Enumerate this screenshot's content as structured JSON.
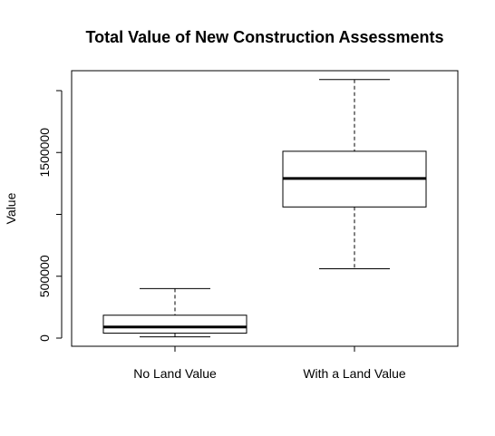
{
  "chart_data": {
    "type": "box",
    "title": "Total Value of New Construction Assessments",
    "xlabel": "",
    "ylabel": "Value",
    "ylim": [
      0,
      2000000
    ],
    "y_ticks": [
      0,
      500000,
      1000000,
      1500000,
      2000000
    ],
    "y_tick_labels": [
      "0",
      "500000",
      "",
      "1500000",
      ""
    ],
    "categories": [
      "No Land Value",
      "With a Land Value"
    ],
    "boxes": [
      {
        "label": "No Land Value",
        "min": 10000,
        "q1": 40000,
        "median": 90000,
        "q3": 185000,
        "max": 400000
      },
      {
        "label": "With a Land Value",
        "min": 560000,
        "q1": 1060000,
        "median": 1290000,
        "q3": 1510000,
        "max": 2090000
      }
    ]
  }
}
